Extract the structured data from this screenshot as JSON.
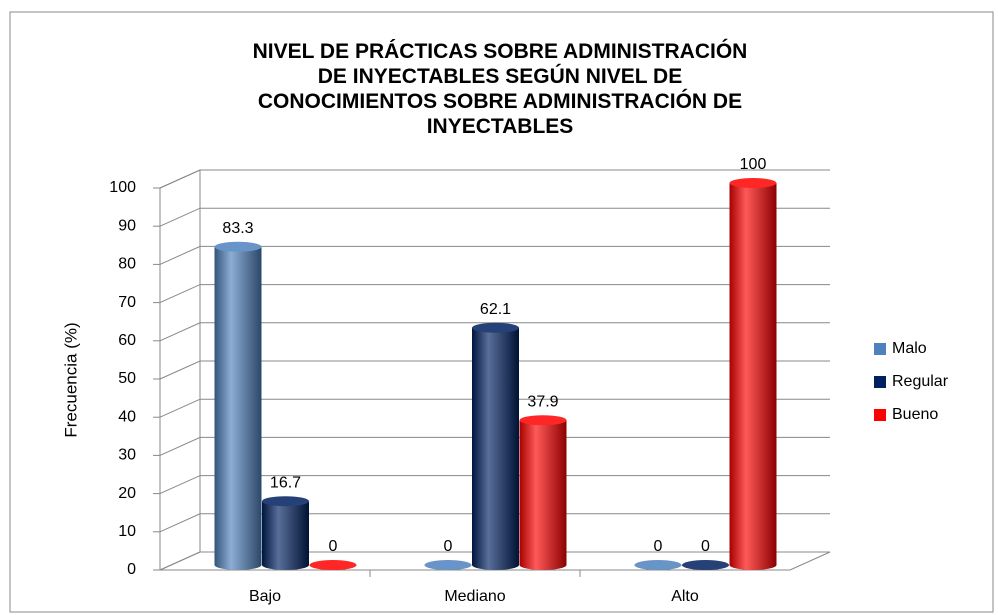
{
  "chart_data": {
    "type": "bar3d",
    "title": "NIVEL DE PRÁCTICAS SOBRE ADMINISTRACIÓN\nDE INYECTABLES SEGÚN NIVEL DE\nCONOCIMIENTOS SOBRE ADMINISTRACIÓN DE\nINYECTABLES",
    "y_label": "Frecuencia (%)",
    "categories": [
      "Bajo",
      "Mediano",
      "Alto"
    ],
    "series": [
      {
        "name": "Malo",
        "color": "#4f81bd",
        "values": [
          83.3,
          0,
          0
        ]
      },
      {
        "name": "Regular",
        "color": "#002060",
        "values": [
          16.7,
          62.1,
          0
        ]
      },
      {
        "name": "Bueno",
        "color": "#ff0000",
        "values": [
          0,
          37.9,
          100
        ]
      }
    ],
    "ylim": [
      0,
      100
    ],
    "yticks": [
      0,
      10,
      20,
      30,
      40,
      50,
      60,
      70,
      80,
      90,
      100
    ],
    "grid": true,
    "legend": "right"
  }
}
